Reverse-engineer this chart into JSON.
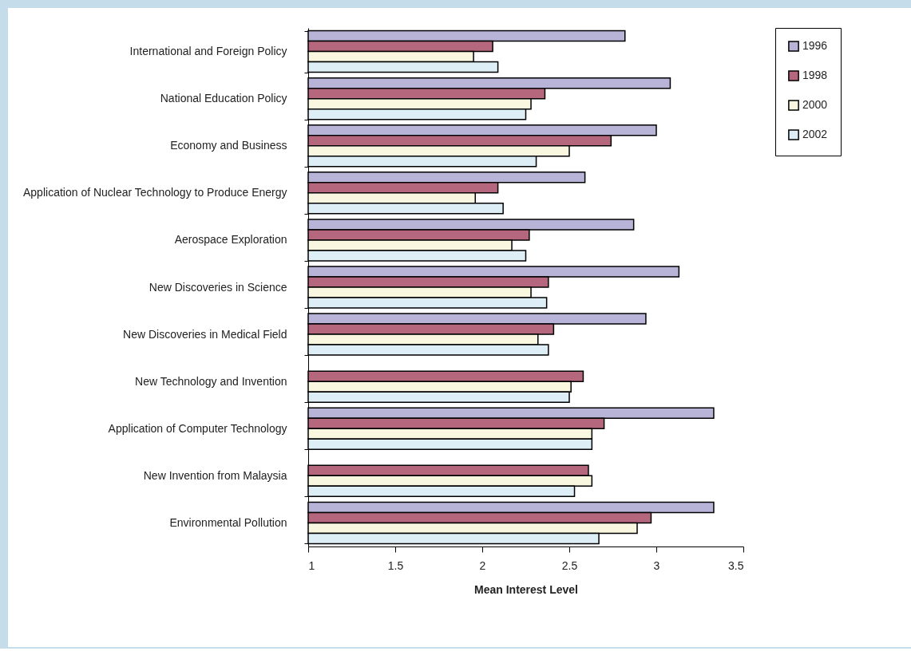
{
  "chart_data": {
    "type": "bar",
    "orientation": "horizontal",
    "xlabel": "Mean Interest Level",
    "categories": [
      "International and Foreign Policy",
      "National Education Policy",
      "Economy and Business",
      "Application of Nuclear Technology to Produce Energy",
      "Aerospace Exploration",
      "New Discoveries in Science",
      "New Discoveries in Medical Field",
      "New Technology and Invention",
      "Application of Computer Technology",
      "New Invention from Malaysia",
      "Environmental Pollution"
    ],
    "series": [
      {
        "name": "1996",
        "color": "#b8b4d8",
        "values": [
          2.82,
          3.08,
          3.0,
          2.59,
          2.87,
          3.13,
          2.94,
          null,
          3.33,
          null,
          3.33
        ]
      },
      {
        "name": "1998",
        "color": "#b5677e",
        "values": [
          2.06,
          2.36,
          2.74,
          2.09,
          2.27,
          2.38,
          2.41,
          2.58,
          2.7,
          2.61,
          2.97
        ]
      },
      {
        "name": "2000",
        "color": "#f9f7e0",
        "values": [
          1.95,
          2.28,
          2.5,
          1.96,
          2.17,
          2.28,
          2.32,
          2.51,
          2.63,
          2.63,
          2.89
        ]
      },
      {
        "name": "2002",
        "color": "#ddeef6",
        "values": [
          2.09,
          2.25,
          2.31,
          2.12,
          2.25,
          2.37,
          2.38,
          2.5,
          2.63,
          2.53,
          2.67
        ]
      }
    ],
    "xlim": [
      1,
      3.5
    ],
    "xticks": [
      1,
      1.5,
      2,
      2.5,
      3,
      3.5
    ],
    "grid": false,
    "legend": "right"
  }
}
